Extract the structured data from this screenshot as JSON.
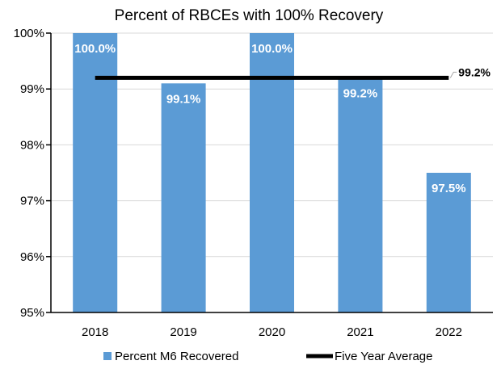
{
  "chart_data": {
    "type": "bar",
    "title": "Percent of RBCEs with 100% Recovery",
    "categories": [
      "2018",
      "2019",
      "2020",
      "2021",
      "2022"
    ],
    "series": [
      {
        "name": "Percent M6 Recovered",
        "values": [
          100.0,
          99.1,
          100.0,
          99.2,
          97.5
        ],
        "data_labels": [
          "100.0%",
          "99.1%",
          "100.0%",
          "99.2%",
          "97.5%"
        ],
        "color": "#5b9bd5"
      },
      {
        "name": "Five Year Average",
        "type": "line",
        "value": 99.2,
        "data_label": "99.2%",
        "color": "#000000"
      }
    ],
    "ylim": [
      95,
      100
    ],
    "yticks": [
      95,
      96,
      97,
      98,
      99,
      100
    ],
    "ytick_labels": [
      "95%",
      "96%",
      "97%",
      "98%",
      "99%",
      "100%"
    ],
    "xlabel": "",
    "ylabel": "",
    "grid": true,
    "legend_position": "bottom"
  }
}
